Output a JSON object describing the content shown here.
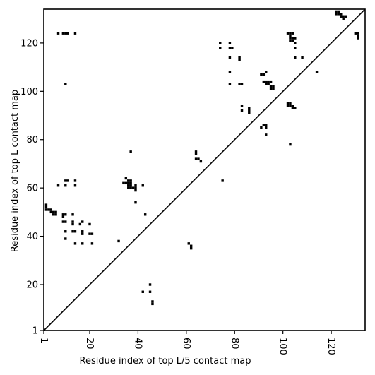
{
  "chart_data": {
    "type": "scatter",
    "title": "",
    "xlabel": "Residue index of top L/5 contact map",
    "ylabel": "Residue index of top L contact map",
    "xlim": [
      1,
      134
    ],
    "ylim": [
      1,
      134
    ],
    "x_ticks": [
      1,
      20,
      40,
      60,
      80,
      100,
      120
    ],
    "y_ticks": [
      1,
      20,
      40,
      60,
      80,
      100,
      120
    ],
    "x_tick_labels": [
      "1",
      "20",
      "40",
      "60",
      "80",
      "100",
      "120"
    ],
    "y_tick_labels": [
      "1",
      "20",
      "40",
      "60",
      "80",
      "100",
      "120"
    ],
    "diagonal": {
      "from": [
        1,
        1
      ],
      "to": [
        134,
        134
      ]
    },
    "grid": false,
    "marker_color": "#000000",
    "series": [
      {
        "values": [
          [
            7,
            124
          ],
          [
            9,
            124
          ],
          [
            10,
            124
          ],
          [
            11,
            124
          ],
          [
            14,
            124
          ],
          [
            10,
            103
          ],
          [
            10,
            63
          ],
          [
            11,
            63
          ],
          [
            14,
            63
          ],
          [
            7,
            61
          ],
          [
            10,
            61
          ],
          [
            14,
            61
          ],
          [
            2,
            53
          ],
          [
            2,
            52
          ],
          [
            2,
            51
          ],
          [
            3,
            51
          ],
          [
            4,
            51
          ],
          [
            4,
            50
          ],
          [
            5,
            50
          ],
          [
            5,
            49
          ],
          [
            6,
            49
          ],
          [
            6,
            50
          ],
          [
            9,
            49
          ],
          [
            10,
            49
          ],
          [
            9,
            48
          ],
          [
            13,
            49
          ],
          [
            9,
            46
          ],
          [
            10,
            46
          ],
          [
            13,
            46
          ],
          [
            13,
            45
          ],
          [
            16,
            45
          ],
          [
            17,
            46
          ],
          [
            20,
            45
          ],
          [
            10,
            42
          ],
          [
            13,
            42
          ],
          [
            14,
            42
          ],
          [
            17,
            42
          ],
          [
            17,
            41
          ],
          [
            20,
            41
          ],
          [
            21,
            41
          ],
          [
            10,
            39
          ],
          [
            14,
            37
          ],
          [
            17,
            37
          ],
          [
            21,
            37
          ],
          [
            32,
            38
          ],
          [
            35,
            64
          ],
          [
            34,
            62
          ],
          [
            35,
            62
          ],
          [
            36,
            62
          ],
          [
            37,
            62
          ],
          [
            36,
            63
          ],
          [
            37,
            63
          ],
          [
            36,
            61
          ],
          [
            37,
            61
          ],
          [
            36,
            60
          ],
          [
            37,
            60
          ],
          [
            38,
            60
          ],
          [
            39,
            60
          ],
          [
            39,
            59
          ],
          [
            39,
            61
          ],
          [
            42,
            61
          ],
          [
            37,
            75
          ],
          [
            39,
            54
          ],
          [
            43,
            49
          ],
          [
            42,
            17
          ],
          [
            45,
            17
          ],
          [
            45,
            20
          ],
          [
            46,
            13
          ],
          [
            46,
            12
          ],
          [
            61,
            37
          ],
          [
            62,
            36
          ],
          [
            62,
            35
          ],
          [
            64,
            75
          ],
          [
            64,
            74
          ],
          [
            64,
            72
          ],
          [
            65,
            72
          ],
          [
            66,
            71
          ],
          [
            75,
            63
          ],
          [
            74,
            120
          ],
          [
            74,
            118
          ],
          [
            78,
            120
          ],
          [
            78,
            118
          ],
          [
            79,
            118
          ],
          [
            78,
            114
          ],
          [
            82,
            114
          ],
          [
            82,
            113
          ],
          [
            78,
            108
          ],
          [
            78,
            103
          ],
          [
            82,
            103
          ],
          [
            83,
            103
          ],
          [
            83,
            94
          ],
          [
            83,
            92
          ],
          [
            86,
            93
          ],
          [
            86,
            92
          ],
          [
            86,
            91
          ],
          [
            91,
            107
          ],
          [
            92,
            107
          ],
          [
            93,
            108
          ],
          [
            92,
            104
          ],
          [
            93,
            104
          ],
          [
            94,
            104
          ],
          [
            95,
            104
          ],
          [
            93,
            103
          ],
          [
            94,
            103
          ],
          [
            95,
            102
          ],
          [
            96,
            102
          ],
          [
            95,
            101
          ],
          [
            96,
            101
          ],
          [
            91,
            85
          ],
          [
            92,
            86
          ],
          [
            93,
            86
          ],
          [
            93,
            85
          ],
          [
            93,
            82
          ],
          [
            102,
            124
          ],
          [
            103,
            124
          ],
          [
            103,
            123
          ],
          [
            103,
            122
          ],
          [
            104,
            122
          ],
          [
            103,
            121
          ],
          [
            104,
            121
          ],
          [
            104,
            124
          ],
          [
            105,
            122
          ],
          [
            105,
            120
          ],
          [
            105,
            118
          ],
          [
            105,
            114
          ],
          [
            108,
            114
          ],
          [
            114,
            108
          ],
          [
            102,
            95
          ],
          [
            103,
            95
          ],
          [
            102,
            94
          ],
          [
            103,
            94
          ],
          [
            104,
            94
          ],
          [
            104,
            93
          ],
          [
            105,
            93
          ],
          [
            103,
            78
          ],
          [
            122,
            133
          ],
          [
            123,
            133
          ],
          [
            122,
            132
          ],
          [
            123,
            132
          ],
          [
            124,
            132
          ],
          [
            124,
            131
          ],
          [
            125,
            131
          ],
          [
            126,
            131
          ],
          [
            125,
            130
          ],
          [
            130,
            124
          ],
          [
            131,
            124
          ],
          [
            131,
            123
          ],
          [
            131,
            122
          ]
        ]
      }
    ]
  }
}
